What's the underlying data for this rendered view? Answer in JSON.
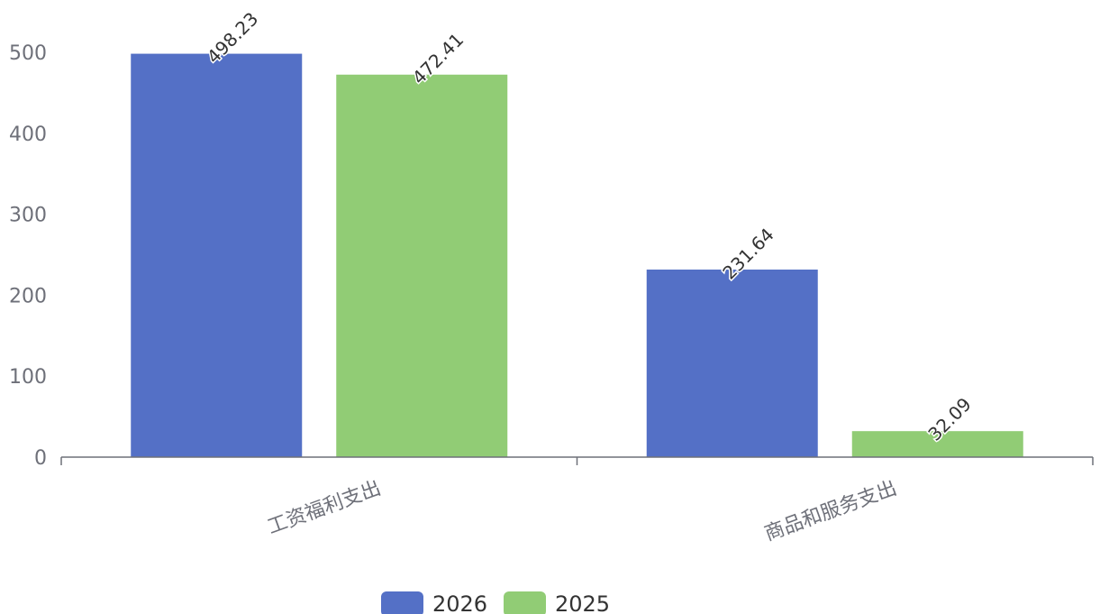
{
  "chart_data": {
    "type": "bar",
    "categories": [
      "工资福利支出",
      "商品和服务支出"
    ],
    "series": [
      {
        "name": "2026",
        "values": [
          498.23,
          231.64
        ],
        "color": "#5470c6"
      },
      {
        "name": "2025",
        "values": [
          472.41,
          32.09
        ],
        "color": "#91cc75"
      }
    ],
    "ylim": [
      0,
      500
    ],
    "yticks": [
      0,
      100,
      200,
      300,
      400,
      500
    ],
    "grid": false,
    "legend_position": "bottom-center",
    "data_labels": [
      "498.23",
      "472.41",
      "231.64",
      "32.09"
    ]
  }
}
